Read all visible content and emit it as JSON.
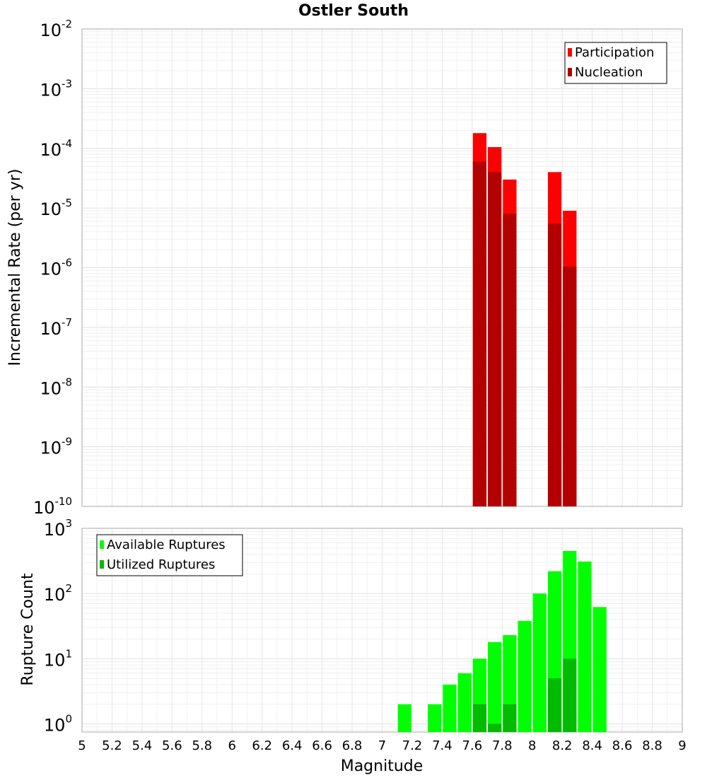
{
  "chart_data": [
    {
      "name": "top",
      "type": "bar",
      "title": "Ostler South",
      "xlabel": "",
      "ylabel": "Incremental Rate (per yr)",
      "yscale": "log",
      "ylim": [
        1e-10,
        0.01
      ],
      "xlim": [
        5,
        9
      ],
      "ytick_exponents": [
        "-2",
        "-3",
        "-4",
        "-5",
        "-6",
        "-7",
        "-8",
        "-9",
        "-10"
      ],
      "legend_position": "top-right",
      "bar_width": 0.1,
      "series": [
        {
          "name": "Participation",
          "color": "#ff0000",
          "x": [
            7.65,
            7.75,
            7.85,
            8.15,
            8.25
          ],
          "values": [
            0.00018,
            0.000105,
            3e-05,
            4e-05,
            9e-06
          ]
        },
        {
          "name": "Nucleation",
          "color": "#b30000",
          "x": [
            7.65,
            7.75,
            7.85,
            8.15,
            8.25
          ],
          "values": [
            6e-05,
            4e-05,
            8e-06,
            5.5e-06,
            1.05e-06
          ]
        }
      ]
    },
    {
      "name": "bottom",
      "type": "bar",
      "xlabel": "Magnitude",
      "ylabel": "Rupture Count",
      "yscale": "log",
      "ylim": [
        0.75,
        1000
      ],
      "xlim": [
        5,
        9
      ],
      "ytick_exponents": [
        "3",
        "2",
        "1",
        "0"
      ],
      "legend_position": "top-left",
      "bar_width": 0.1,
      "series": [
        {
          "name": "Available Ruptures",
          "color": "#00ff00",
          "x": [
            7.15,
            7.35,
            7.45,
            7.55,
            7.65,
            7.75,
            7.85,
            7.95,
            8.05,
            8.15,
            8.25,
            8.35,
            8.45
          ],
          "values": [
            2,
            2,
            4,
            6,
            10,
            18,
            23,
            38,
            100,
            220,
            450,
            310,
            62
          ]
        },
        {
          "name": "Utilized Ruptures",
          "color": "#00bb00",
          "x": [
            7.65,
            7.75,
            7.85,
            8.15,
            8.25
          ],
          "values": [
            2,
            1,
            2,
            5,
            10
          ]
        }
      ]
    }
  ],
  "x_ticks": [
    "5",
    "5.2",
    "5.4",
    "5.6",
    "5.8",
    "6",
    "6.2",
    "6.4",
    "6.6",
    "6.8",
    "7",
    "7.2",
    "7.4",
    "7.6",
    "7.8",
    "8",
    "8.2",
    "8.4",
    "8.6",
    "8.8",
    "9"
  ],
  "y_tick_base": "10"
}
